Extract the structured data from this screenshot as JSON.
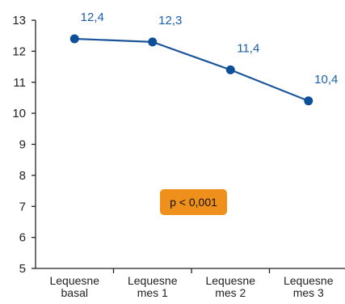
{
  "chart_data": {
    "type": "line",
    "categories": [
      [
        "Lequesne",
        "basal"
      ],
      [
        "Lequesne",
        "mes 1"
      ],
      [
        "Lequesne",
        "mes 2"
      ],
      [
        "Lequesne",
        "mes 3"
      ]
    ],
    "series": [
      {
        "values": [
          12.4,
          12.3,
          11.4,
          10.4
        ],
        "value_labels": [
          "12,4",
          "12,3",
          "11,4",
          "10,4"
        ]
      }
    ],
    "ylim": [
      5,
      13
    ],
    "yticks": [
      5,
      6,
      7,
      8,
      9,
      10,
      11,
      12,
      13
    ],
    "ytick_labels": [
      "5",
      "6",
      "7",
      "8",
      "9",
      "10",
      "11",
      "12",
      "13"
    ],
    "grid": false,
    "annotation": "p < 0,001",
    "colors": {
      "line": "#1a5599",
      "marker": "#0e4f9a",
      "label": "#1a5fa8",
      "badge": "#f0901c",
      "axis": "#222222"
    }
  }
}
